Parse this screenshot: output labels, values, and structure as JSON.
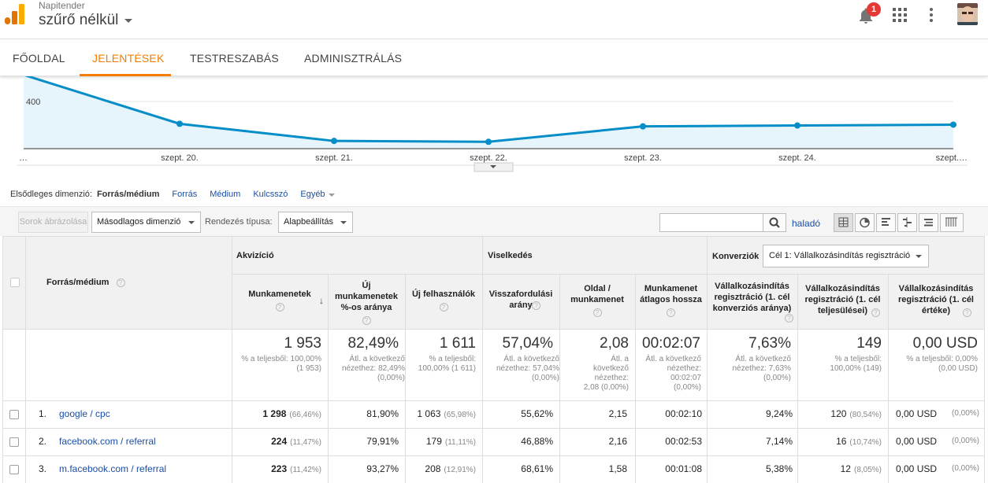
{
  "header": {
    "account_small": "Napitender",
    "view_name": "szűrő nélkül",
    "notification_count": "1"
  },
  "tabs": [
    "FŐOLDAL",
    "JELENTÉSEK",
    "TESTRESZABÁS",
    "ADMINISZTRÁLÁS"
  ],
  "chart_data": {
    "type": "line",
    "x": [
      "…",
      "szept. 20.",
      "szept. 21.",
      "szept. 22.",
      "szept. 23.",
      "szept. 24.",
      "szept.…"
    ],
    "series": [
      {
        "values": [
          431,
          374,
          354,
          353,
          371,
          372,
          373
        ]
      }
    ],
    "ytick": "400",
    "color": "#058dc7"
  },
  "dims": {
    "label": "Elsődleges dimenzió:",
    "current": "Forrás/médium",
    "links": [
      "Forrás",
      "Médium",
      "Kulcsszó",
      "Egyéb"
    ]
  },
  "toolbar": {
    "plot_rows": "Sorok ábrázolása",
    "secondary_dim": "Másodlagos dimenzió",
    "sort_label": "Rendezés típusa:",
    "sort_value": "Alapbeállítás",
    "advanced": "haladó"
  },
  "table": {
    "dim_header": "Forrás/médium",
    "groups": {
      "acquisition": "Akvizíció",
      "behavior": "Viselkedés",
      "conversions": "Konverziók",
      "goal_select": "Cél 1: Vállalkozásindítás regisztráció"
    },
    "columns": [
      "Munkamenetek",
      "Új munkamenetek %-os aránya",
      "Új felhasználók",
      "Visszafordulási arány",
      "Oldal / munkamenet",
      "Munkamenet átlagos hossza",
      "Vállalkozásindítás regisztráció (1. cél konverziós aránya)",
      "Vállalkozásindítás regisztráció (1. cél teljesülései)",
      "Vállalkozásindítás regisztráció (1. cél értéke)"
    ],
    "totals": [
      {
        "big": "1 953",
        "sub": "% a teljesből: 100,00% (1 953)"
      },
      {
        "big": "82,49%",
        "sub": "Átl. a következő nézethez: 82,49% (0,00%)"
      },
      {
        "big": "1 611",
        "sub": "% a teljesből: 100,00% (1 611)"
      },
      {
        "big": "57,04%",
        "sub": "Átl. a következő nézethez: 57,04% (0,00%)"
      },
      {
        "big": "2,08",
        "sub": "Átl. a következő nézethez: 2,08 (0,00%)"
      },
      {
        "big": "00:02:07",
        "sub": "Átl. a következő nézethez: 00:02:07 (0,00%)"
      },
      {
        "big": "7,63%",
        "sub": "Átl. a következő nézethez: 7,63% (0,00%)"
      },
      {
        "big": "149",
        "sub": "% a teljesből: 100,00% (149)"
      },
      {
        "big": "0,00 USD",
        "sub": "% a teljesből: 0,00% (0,00 USD)"
      }
    ],
    "rows": [
      {
        "num": "1.",
        "source": "google / cpc",
        "sessions": "1 298",
        "sessions_pct": "(66,46%)",
        "new_pct": "81,90%",
        "new_users": "1 063",
        "new_users_pct": "(65,98%)",
        "bounce": "55,62%",
        "pages": "2,15",
        "duration": "00:02:10",
        "conv": "9,24%",
        "compl": "120",
        "compl_pct": "(80,54%)",
        "value": "0,00 USD",
        "value_pct": "(0,00%)"
      },
      {
        "num": "2.",
        "source": "facebook.com / referral",
        "sessions": "224",
        "sessions_pct": "(11,47%)",
        "new_pct": "79,91%",
        "new_users": "179",
        "new_users_pct": "(11,11%)",
        "bounce": "46,88%",
        "pages": "2,16",
        "duration": "00:02:53",
        "conv": "7,14%",
        "compl": "16",
        "compl_pct": "(10,74%)",
        "value": "0,00 USD",
        "value_pct": "(0,00%)"
      },
      {
        "num": "3.",
        "source": "m.facebook.com / referral",
        "sessions": "223",
        "sessions_pct": "(11,42%)",
        "new_pct": "93,27%",
        "new_users": "208",
        "new_users_pct": "(12,91%)",
        "bounce": "68,61%",
        "pages": "1,58",
        "duration": "00:01:08",
        "conv": "5,38%",
        "compl": "12",
        "compl_pct": "(8,05%)",
        "value": "0,00 USD",
        "value_pct": "(0,00%)"
      }
    ]
  }
}
